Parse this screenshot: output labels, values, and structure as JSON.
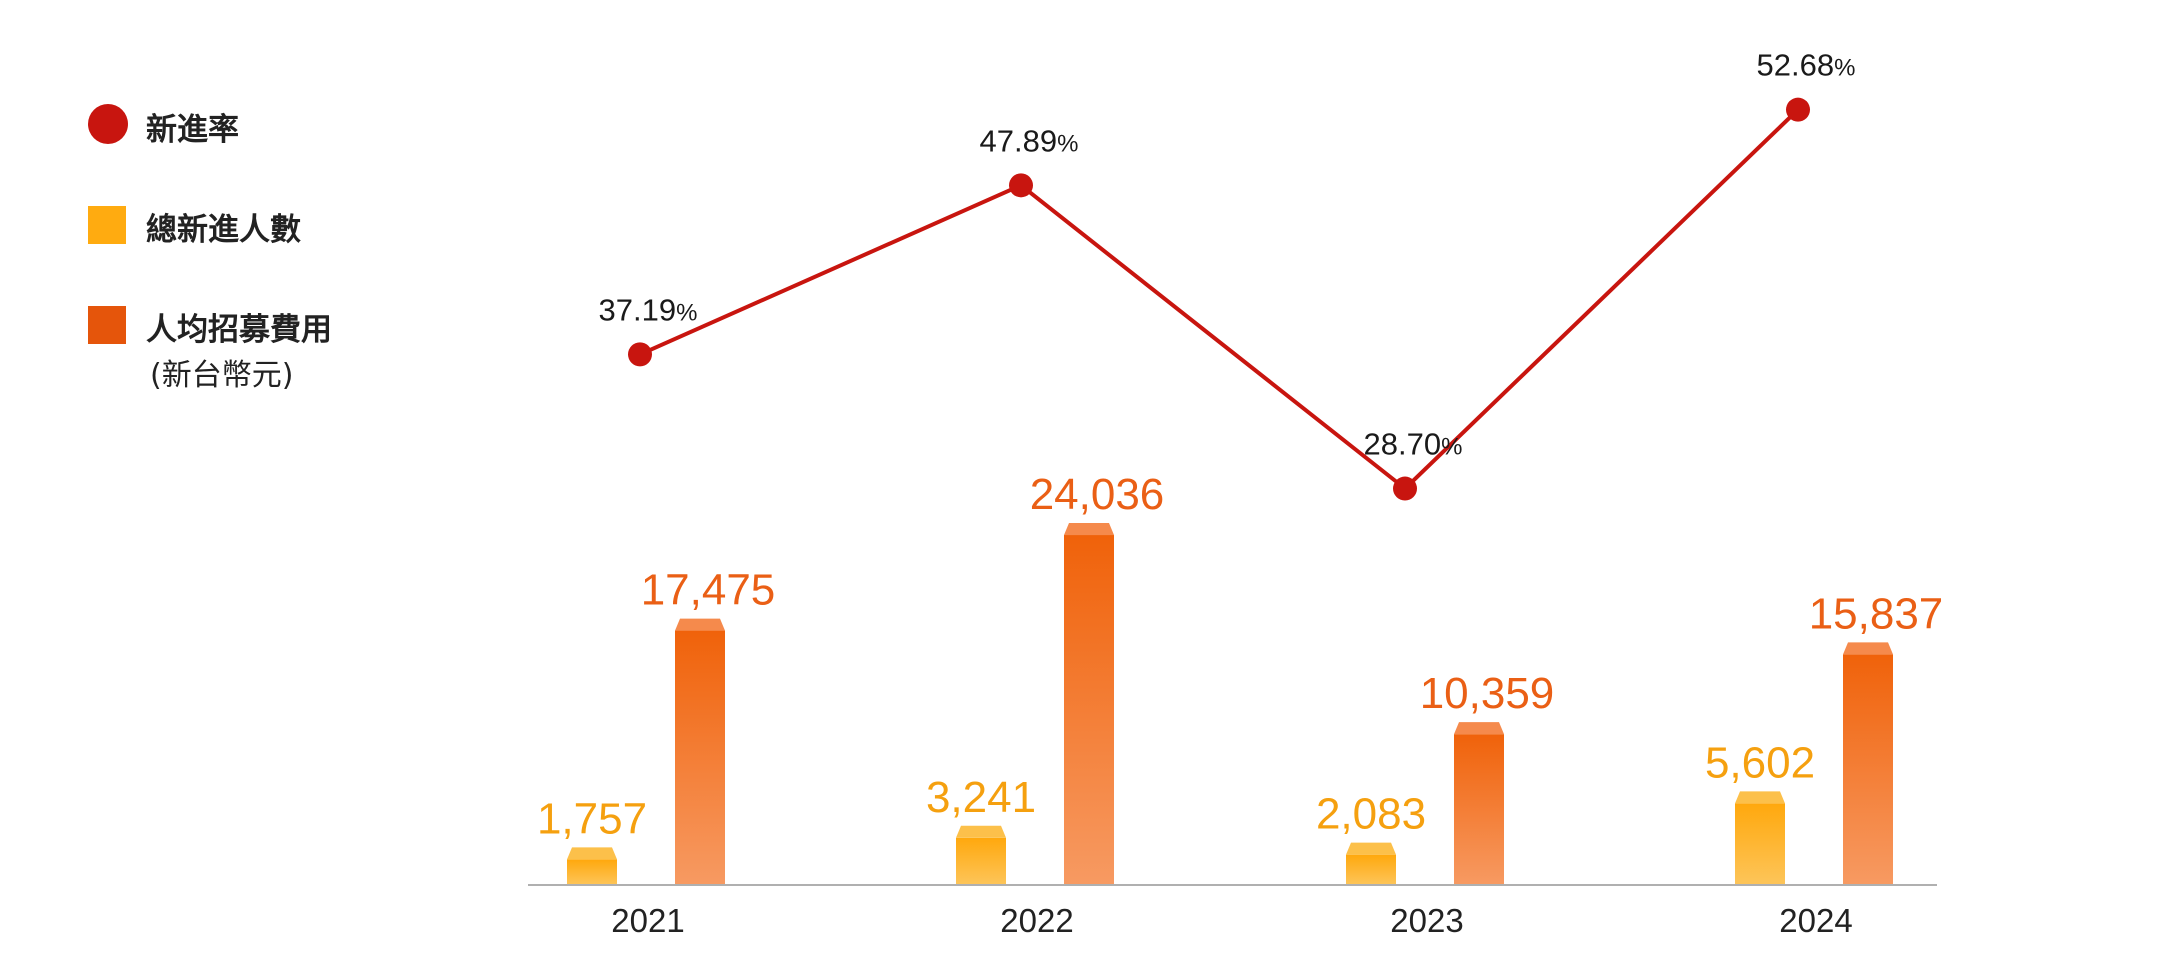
{
  "chart_data": {
    "type": "bar",
    "categories": [
      "2021",
      "2022",
      "2023",
      "2024"
    ],
    "series": [
      {
        "name": "總新進人數",
        "type": "bar",
        "values": [
          1757,
          3241,
          2083,
          5602
        ],
        "labels": [
          "1,757",
          "3,241",
          "2,083",
          "5,602"
        ]
      },
      {
        "name": "人均招募費用",
        "name_sub": "(新台幣元)",
        "type": "bar",
        "values": [
          17475,
          24036,
          10359,
          15837
        ],
        "labels": [
          "17,475",
          "24,036",
          "10,359",
          "15,837"
        ]
      },
      {
        "name": "新進率",
        "type": "line",
        "values": [
          37.19,
          47.89,
          28.7,
          52.68
        ],
        "labels": [
          "37.19",
          "47.89",
          "28.70",
          "52.68"
        ],
        "unit": "%"
      }
    ],
    "legend_position": "left",
    "grid": false,
    "colors": {
      "rate_line": "#c8150f",
      "headcount_top": "#ffa80d",
      "headcount_bottom": "#fdc55a",
      "headcount_label": "#f5a00f",
      "cost_top": "#f0620a",
      "cost_bottom": "#f79a62",
      "cost_label": "#ea5f15",
      "legend_headcount": "#ffab10",
      "legend_cost": "#e5550b",
      "axis": "#b0b0b0",
      "text": "#222222"
    }
  }
}
